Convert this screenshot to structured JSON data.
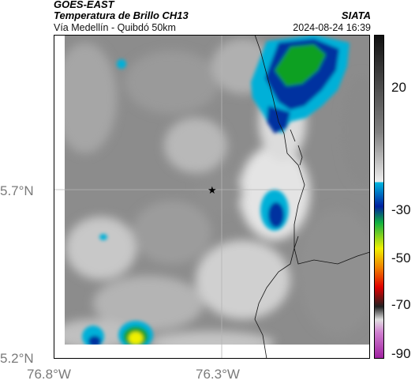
{
  "header": {
    "satellite": "GOES-EAST",
    "product": "Temperatura de Brillo CH13",
    "route": "Vía Medellín - Quibdó 50km",
    "org": "SIATA",
    "datetime": "2024-08-24 16:39"
  },
  "axes": {
    "lat_labels": [
      "5.7°N",
      "5.2°N"
    ],
    "lon_labels": [
      "76.8°W",
      "76.3°W"
    ]
  },
  "colorbar": {
    "labels": [
      "20",
      "-30",
      "-50",
      "-70",
      "-90"
    ],
    "colors": {
      "dark": "#1a1a1a",
      "gray": "#808080",
      "light": "#e6e6e6",
      "cyan": "#00b0d8",
      "blue": "#0030a0",
      "green": "#10a020",
      "yellow": "#f0f000",
      "orange": "#f08000",
      "red": "#e00000",
      "magenta": "#c040c0"
    }
  },
  "map": {
    "marker": "star-icon"
  }
}
